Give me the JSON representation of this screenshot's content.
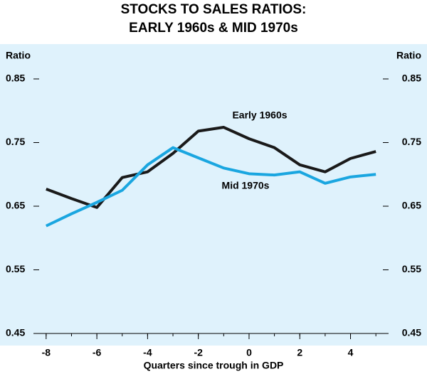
{
  "chart_data": {
    "type": "line",
    "title": [
      "STOCKS TO SALES RATIOS:",
      "EARLY 1960s & MID 1970s"
    ],
    "xlabel": "Quarters since trough in GDP",
    "ylabel": "Ratio",
    "y2label": "Ratio",
    "x": [
      -8,
      -7,
      -6,
      -5,
      -4,
      -3,
      -2,
      -1,
      0,
      1,
      2,
      3,
      4,
      5
    ],
    "series": [
      {
        "name": "Early 1960s",
        "color": "#1a1a1a",
        "values": [
          0.677,
          0.662,
          0.648,
          0.695,
          0.704,
          0.733,
          0.768,
          0.774,
          0.756,
          0.742,
          0.715,
          0.704,
          0.725,
          0.736
        ]
      },
      {
        "name": "Mid 1970s",
        "color": "#1aa6e0",
        "values": [
          0.619,
          0.638,
          0.656,
          0.675,
          0.715,
          0.742,
          0.726,
          0.71,
          0.701,
          0.699,
          0.704,
          0.686,
          0.696,
          0.7
        ]
      }
    ],
    "xlim": [
      -8.5,
      5.5
    ],
    "xticks": [
      -8,
      -6,
      -4,
      -2,
      0,
      2,
      4
    ],
    "ylim": [
      0.45,
      0.85
    ],
    "yticks": [
      0.45,
      0.55,
      0.65,
      0.75,
      0.85
    ],
    "y2lim": [
      0.45,
      0.85
    ],
    "y2ticks": [
      0.45,
      0.55,
      0.65,
      0.75,
      0.85
    ]
  }
}
